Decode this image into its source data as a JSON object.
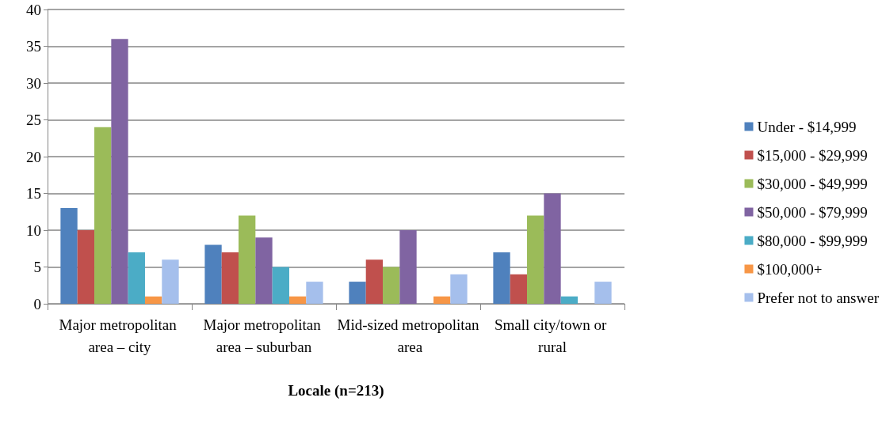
{
  "chart_data": {
    "type": "bar",
    "xlabel": "Locale (n=213)",
    "categories": [
      "Major metropolitan area – city",
      "Major metropolitan area – suburban",
      "Mid-sized metropolitan area",
      "Small city/town or rural"
    ],
    "series": [
      {
        "name": "Under - $14,999",
        "color": "#4f81bd",
        "values": [
          13,
          8,
          3,
          7
        ]
      },
      {
        "name": "$15,000 - $29,999",
        "color": "#c0504d",
        "values": [
          10,
          7,
          6,
          4
        ]
      },
      {
        "name": "$30,000 - $49,999",
        "color": "#9bbb59",
        "values": [
          24,
          12,
          5,
          12
        ]
      },
      {
        "name": "$50,000 - $79,999",
        "color": "#8064a2",
        "values": [
          36,
          9,
          10,
          15
        ]
      },
      {
        "name": "$80,000 - $99,999",
        "color": "#4bacc6",
        "values": [
          7,
          5,
          0,
          1
        ]
      },
      {
        "name": "$100,000+",
        "color": "#f79646",
        "values": [
          1,
          1,
          1,
          0
        ]
      },
      {
        "name": "Prefer not to answer",
        "color": "#a5bfec",
        "values": [
          6,
          3,
          4,
          3
        ]
      }
    ],
    "ylim": [
      0,
      40
    ],
    "yticks": [
      0,
      5,
      10,
      15,
      20,
      25,
      30,
      35,
      40
    ],
    "grid": "y",
    "legend": "right"
  }
}
